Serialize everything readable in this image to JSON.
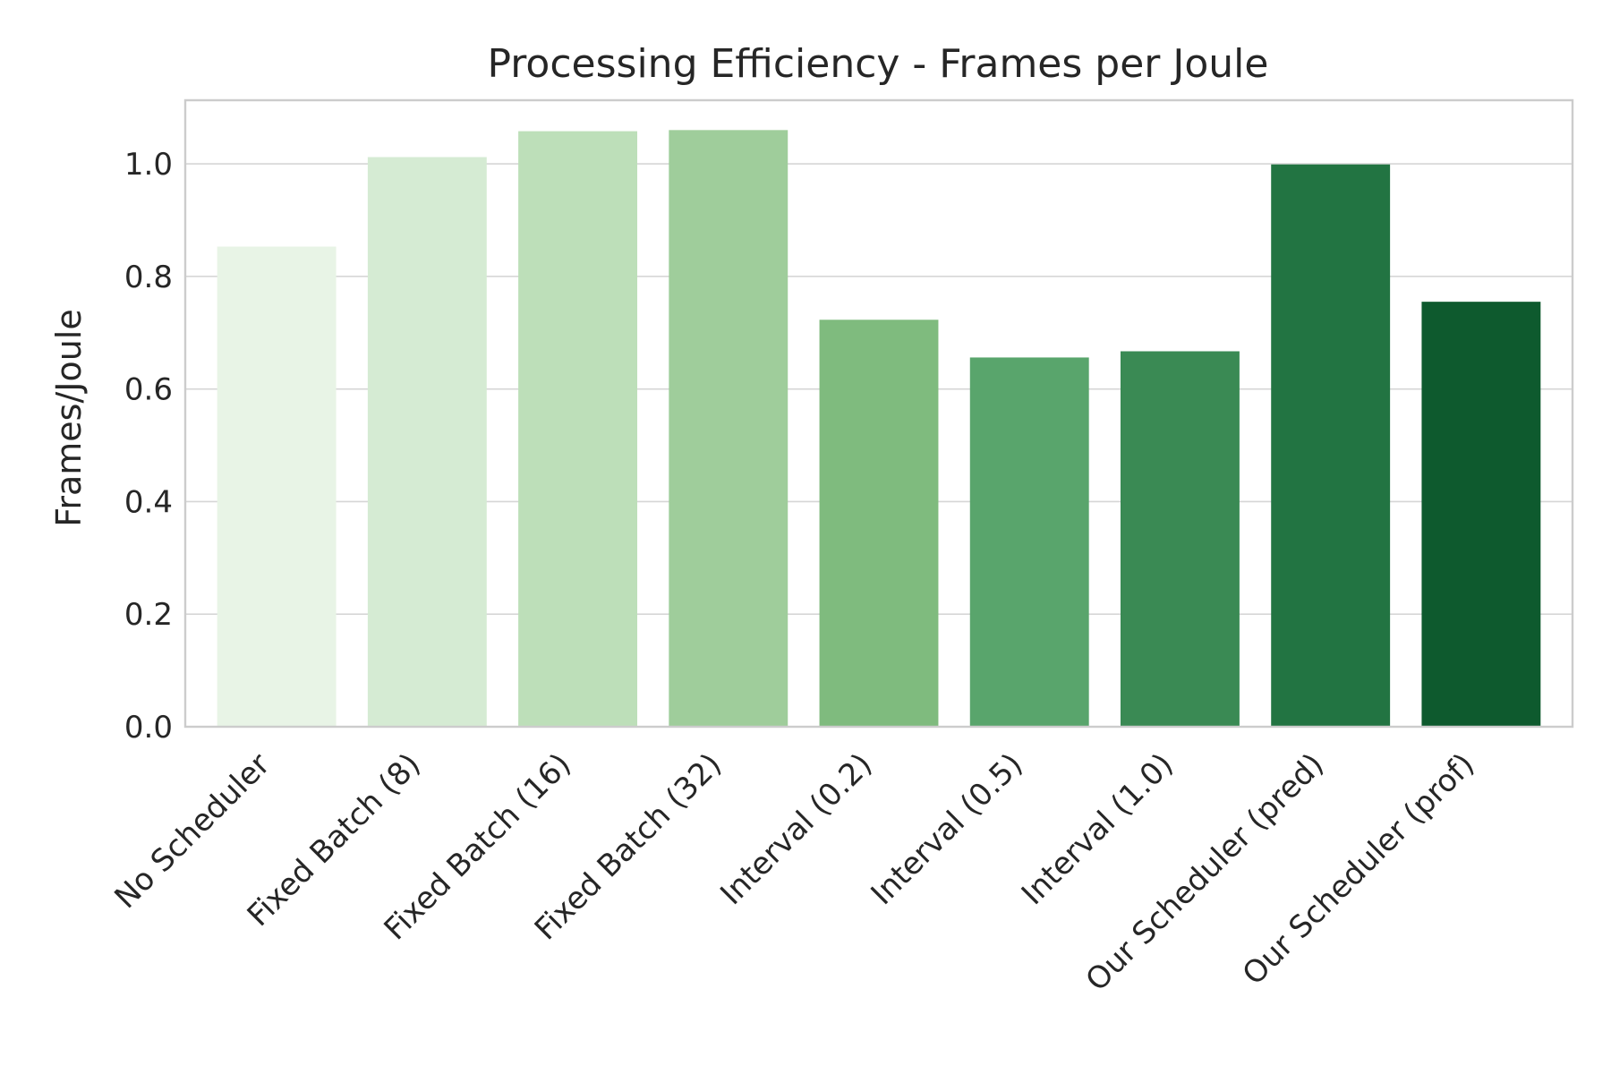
{
  "chart_data": {
    "type": "bar",
    "title": "Processing Efficiency - Frames per Joule",
    "xlabel": "",
    "ylabel": "Frames/Joule",
    "categories": [
      "No Scheduler",
      "Fixed Batch (8)",
      "Fixed Batch (16)",
      "Fixed Batch (32)",
      "Interval (0.2)",
      "Interval (0.5)",
      "Interval (1.0)",
      "Our Scheduler (pred)",
      "Our Scheduler (prof)"
    ],
    "values": [
      0.853,
      1.012,
      1.058,
      1.06,
      0.723,
      0.656,
      0.667,
      0.999,
      0.755
    ],
    "colors": [
      "#e8f4e6",
      "#d5ebd3",
      "#bddfb9",
      "#9fcd9b",
      "#7fbb7e",
      "#59a56c",
      "#3a8a54",
      "#227442",
      "#0e5a2e"
    ],
    "ylim": [
      0,
      1.113
    ],
    "yticks": [
      0.0,
      0.2,
      0.4,
      0.6,
      0.8,
      1.0
    ],
    "ytick_labels": [
      "0.0",
      "0.2",
      "0.4",
      "0.6",
      "0.8",
      "1.0"
    ],
    "grid": "horizontal",
    "legend": "none"
  }
}
